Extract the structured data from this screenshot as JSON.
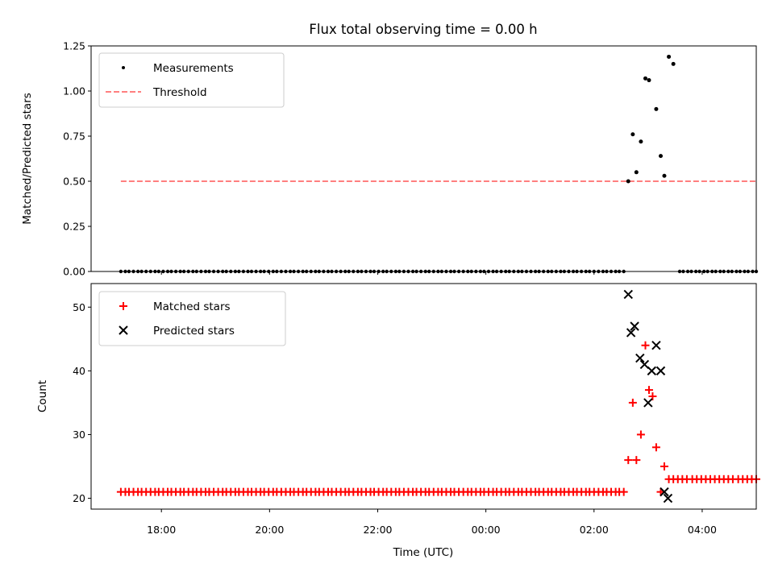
{
  "chart_data": [
    {
      "type": "scatter",
      "title": "Flux total observing time = 0.00 h",
      "xlabel": "",
      "ylabel": "Matched/Predicted stars",
      "ylim": [
        0,
        1.25
      ],
      "yticks": [
        "0.00",
        "0.25",
        "0.50",
        "0.75",
        "1.00",
        "1.25"
      ],
      "ytick_values": [
        0,
        0.25,
        0.5,
        0.75,
        1.0,
        1.25
      ],
      "xlim_hours": [
        16.7,
        5.0
      ],
      "legend_position": "upper-left",
      "colors": {
        "measurements": "#000000",
        "threshold": "#ff7f7f"
      },
      "series": [
        {
          "name": "Measurements",
          "kind": "scatter",
          "points": [
            {
              "t": "02:38",
              "v": 0.5
            },
            {
              "t": "02:43",
              "v": 0.76
            },
            {
              "t": "02:47",
              "v": 0.55
            },
            {
              "t": "02:52",
              "v": 0.72
            },
            {
              "t": "02:57",
              "v": 1.07
            },
            {
              "t": "03:01",
              "v": 1.06
            },
            {
              "t": "03:09",
              "v": 0.9
            },
            {
              "t": "03:14",
              "v": 0.64
            },
            {
              "t": "03:18",
              "v": 0.53
            },
            {
              "t": "03:23",
              "v": 1.19
            },
            {
              "t": "03:28",
              "v": 1.15
            }
          ],
          "zero_runs": [
            {
              "start": "17:15",
              "end": "02:33",
              "n": 120
            },
            {
              "start": "03:35",
              "end": "05:00",
              "n": 20
            }
          ]
        },
        {
          "name": "Threshold",
          "kind": "hline",
          "value": 0.5,
          "start": "17:15",
          "end": "05:00"
        }
      ]
    },
    {
      "type": "scatter",
      "title": "",
      "xlabel": "Time (UTC)",
      "ylabel": "Count",
      "ylim": [
        18.3,
        53.7
      ],
      "yticks": [
        "20",
        "30",
        "40",
        "50"
      ],
      "ytick_values": [
        20,
        30,
        40,
        50
      ],
      "xticks": [
        "18:00",
        "20:00",
        "22:00",
        "00:00",
        "02:00",
        "04:00"
      ],
      "legend_position": "upper-left",
      "colors": {
        "matched": "#ff0000",
        "predicted": "#000000"
      },
      "series": [
        {
          "name": "Matched stars",
          "marker": "plus",
          "points": [
            {
              "t": "02:38",
              "v": 26
            },
            {
              "t": "02:43",
              "v": 35
            },
            {
              "t": "02:47",
              "v": 26
            },
            {
              "t": "02:52",
              "v": 30
            },
            {
              "t": "02:57",
              "v": 44
            },
            {
              "t": "03:01",
              "v": 37
            },
            {
              "t": "03:05",
              "v": 36
            },
            {
              "t": "03:09",
              "v": 28
            },
            {
              "t": "03:14",
              "v": 21
            },
            {
              "t": "03:18",
              "v": 25
            }
          ],
          "const_runs": [
            {
              "start": "17:15",
              "end": "02:33",
              "n": 120,
              "v": 21
            },
            {
              "start": "03:23",
              "end": "05:00",
              "n": 20,
              "v": 23
            }
          ]
        },
        {
          "name": "Predicted stars",
          "marker": "x",
          "points": [
            {
              "t": "02:38",
              "v": 52
            },
            {
              "t": "02:41",
              "v": 46
            },
            {
              "t": "02:45",
              "v": 47
            },
            {
              "t": "02:51",
              "v": 42
            },
            {
              "t": "02:56",
              "v": 41
            },
            {
              "t": "03:00",
              "v": 35
            },
            {
              "t": "03:04",
              "v": 40
            },
            {
              "t": "03:09",
              "v": 44
            },
            {
              "t": "03:14",
              "v": 40
            },
            {
              "t": "03:18",
              "v": 21
            },
            {
              "t": "03:22",
              "v": 20
            }
          ]
        }
      ]
    }
  ]
}
